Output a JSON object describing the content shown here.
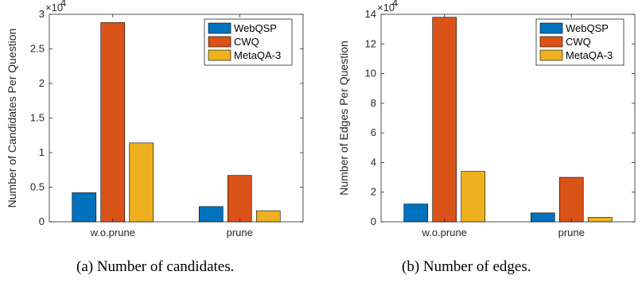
{
  "series_colors": [
    "#0072BD",
    "#D95319",
    "#EDB120"
  ],
  "chart_data": [
    {
      "type": "bar",
      "categories": [
        "w.o.prune",
        "prune"
      ],
      "series": [
        {
          "name": "WebQSP",
          "values": [
            4200,
            2200
          ]
        },
        {
          "name": "CWQ",
          "values": [
            28800,
            6700
          ]
        },
        {
          "name": "MetaQA-3",
          "values": [
            11400,
            1600
          ]
        }
      ],
      "ylabel": "Number of Candidates Per Question",
      "ylim": [
        0,
        30000
      ],
      "yticks": [
        0,
        5000,
        10000,
        15000,
        20000,
        25000,
        30000
      ],
      "ytick_labels": [
        "0",
        "0.5",
        "1",
        "1.5",
        "2",
        "2.5",
        "3"
      ],
      "multiplier": "×10",
      "multiplier_exp": "4",
      "legend": "top-right",
      "caption": "(a) Number of candidates."
    },
    {
      "type": "bar",
      "categories": [
        "w.o.prune",
        "prune"
      ],
      "series": [
        {
          "name": "WebQSP",
          "values": [
            12000,
            6000
          ]
        },
        {
          "name": "CWQ",
          "values": [
            138000,
            30000
          ]
        },
        {
          "name": "MetaQA-3",
          "values": [
            34000,
            3000
          ]
        }
      ],
      "ylabel": "Number of Edges Per Question",
      "ylim": [
        0,
        140000
      ],
      "yticks": [
        0,
        20000,
        40000,
        60000,
        80000,
        100000,
        120000,
        140000
      ],
      "ytick_labels": [
        "0",
        "2",
        "4",
        "6",
        "8",
        "10",
        "12",
        "14"
      ],
      "multiplier": "×10",
      "multiplier_exp": "4",
      "legend": "top-right",
      "caption": "(b) Number of edges."
    }
  ]
}
